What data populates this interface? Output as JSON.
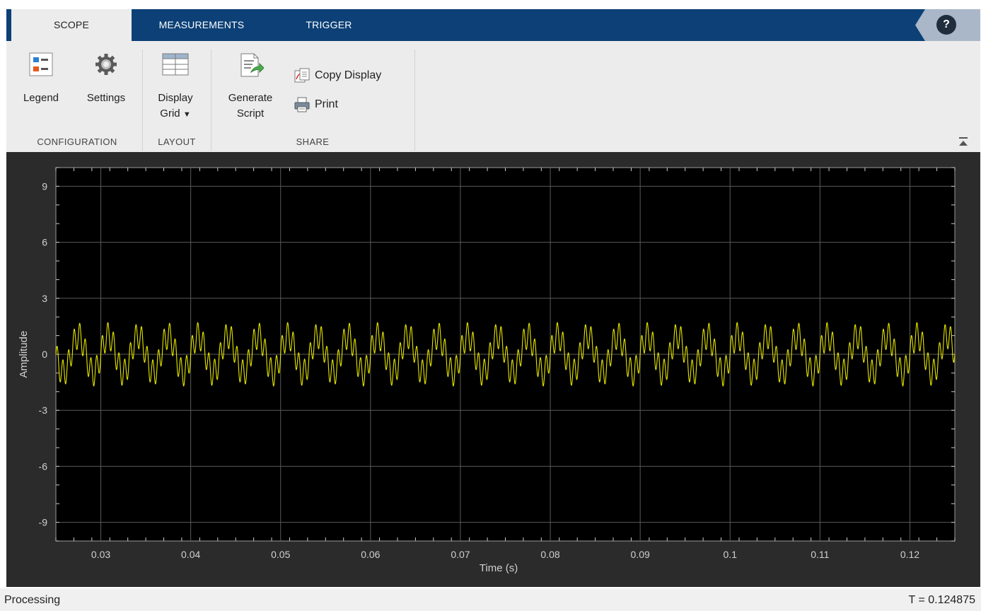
{
  "tabs": [
    {
      "label": "SCOPE",
      "active": true
    },
    {
      "label": "MEASUREMENTS",
      "active": false
    },
    {
      "label": "TRIGGER",
      "active": false
    }
  ],
  "help": {
    "label": "?"
  },
  "ribbon": {
    "configuration": {
      "group_label": "CONFIGURATION",
      "legend_label": "Legend",
      "settings_label": "Settings"
    },
    "layout": {
      "group_label": "LAYOUT",
      "display_grid_line1": "Display",
      "display_grid_line2": "Grid"
    },
    "share": {
      "group_label": "SHARE",
      "generate_script_line1": "Generate",
      "generate_script_line2": "Script",
      "copy_display_label": "Copy Display",
      "print_label": "Print"
    }
  },
  "colors": {
    "tab_strip": "#0c4076",
    "ribbon_bg": "#ececec",
    "plot_bg": "#000000",
    "frame_bg": "#2b2b2b",
    "grid": "#5a5a5a",
    "trace": "#e6e600",
    "tick_label": "#d0d0d0"
  },
  "chart_data": {
    "type": "line",
    "xlabel": "Time (s)",
    "ylabel": "Amplitude",
    "xlim": [
      0.025,
      0.125
    ],
    "ylim": [
      -10,
      10
    ],
    "xticks": [
      0.03,
      0.04,
      0.05,
      0.06,
      0.07,
      0.08,
      0.09,
      0.1,
      0.11,
      0.12
    ],
    "xtick_labels": [
      "0.03",
      "0.04",
      "0.05",
      "0.06",
      "0.07",
      "0.08",
      "0.09",
      "0.1",
      "0.11",
      "0.12"
    ],
    "yticks": [
      9,
      6,
      3,
      0,
      -3,
      -6,
      -9
    ],
    "ytick_labels": [
      "9",
      "6",
      "3",
      "0",
      "-3",
      "-6",
      "-9"
    ],
    "grid": true,
    "series": [
      {
        "signal": "sum of sinusoids",
        "components": [
          {
            "amplitude": 1.0,
            "frequency_hz": 300
          },
          {
            "amplitude": 0.7,
            "frequency_hz": 1600
          }
        ],
        "y_range_approx": [
          -2.0,
          2.0
        ]
      }
    ]
  },
  "status": {
    "left": "Processing",
    "right": "T = 0.124875"
  }
}
